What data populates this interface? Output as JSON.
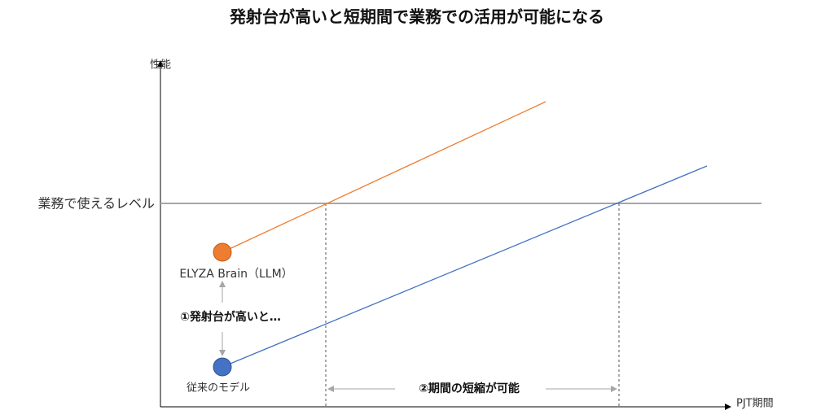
{
  "header": {
    "title": "発射台が高いと短期間で業務での活用が可能になる"
  },
  "axes": {
    "y_label": "性能",
    "x_label": "PJT期間"
  },
  "threshold": {
    "label": "業務で使えるレベル"
  },
  "nodes": [
    {
      "label": "ELYZA Brain（LLM）"
    },
    {
      "label": "従来のモデル"
    }
  ],
  "annotations": [
    {
      "label": "①発射台が高いと…"
    },
    {
      "label": "②期間の短縮が可能"
    }
  ]
}
